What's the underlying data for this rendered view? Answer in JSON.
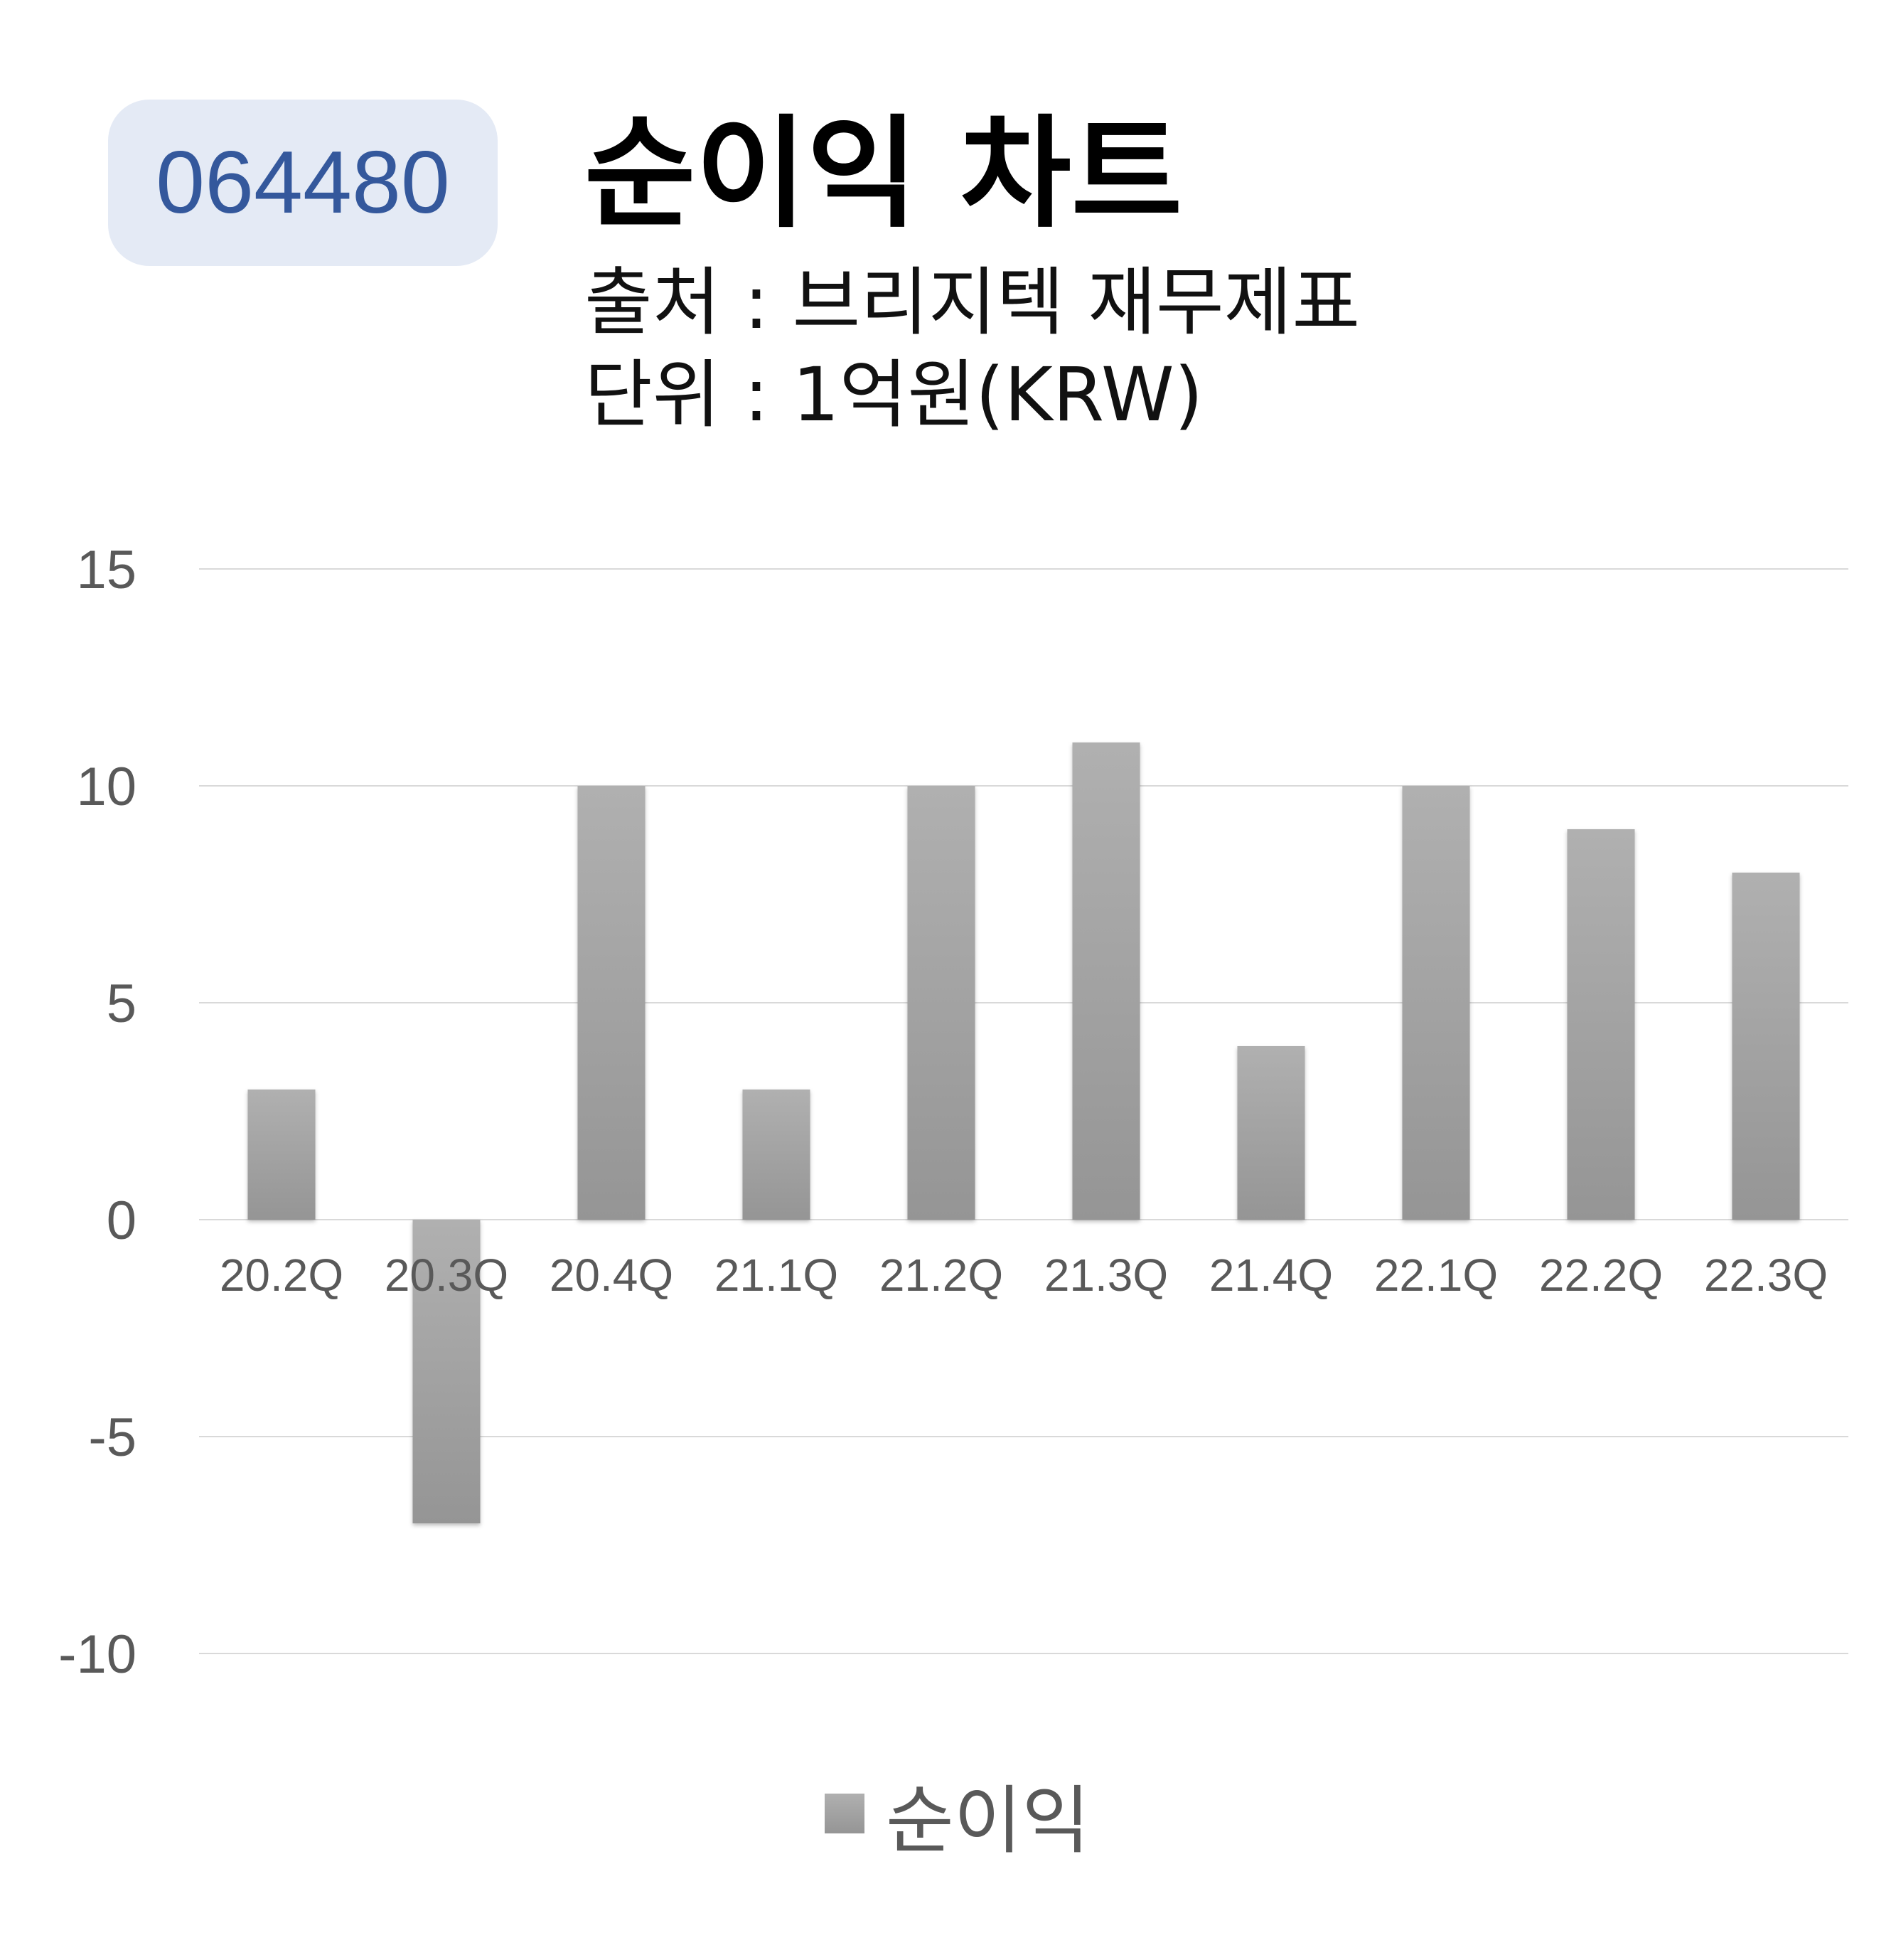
{
  "header": {
    "code": "064480",
    "title": "순이익 차트",
    "source": "출처 : 브리지텍 재무제표",
    "unit": "단위 : 1억원(KRW)"
  },
  "colors": {
    "badge_bg": "#e4eaf5",
    "badge_text": "#34589c",
    "bar_top": "#b0b0b0",
    "bar_bottom": "#959595",
    "grid": "#d9d9d9",
    "axis_text": "#595959"
  },
  "chart_data": {
    "type": "bar",
    "categories": [
      "20.2Q",
      "20.3Q",
      "20.4Q",
      "21.1Q",
      "21.2Q",
      "21.3Q",
      "21.4Q",
      "22.1Q",
      "22.2Q",
      "22.3Q"
    ],
    "series": [
      {
        "name": "순이익",
        "values": [
          3,
          -7,
          10,
          3,
          10,
          11,
          4,
          10,
          9,
          8
        ]
      }
    ],
    "ylim": [
      -10,
      15
    ],
    "yticks": [
      15,
      10,
      5,
      0,
      -5,
      -10
    ],
    "grid": true,
    "legend": "bottom"
  }
}
